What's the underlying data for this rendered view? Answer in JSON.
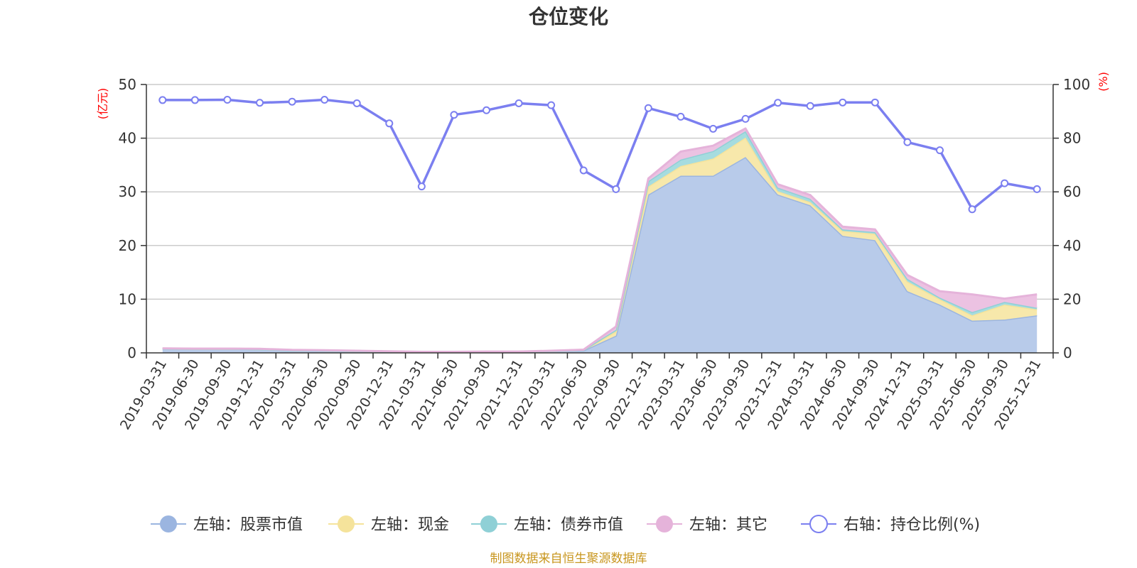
{
  "chart_data": {
    "type": "area",
    "title": "仓位变化",
    "left_axis": {
      "unit_label": "(亿元)",
      "ylim": [
        0,
        50
      ],
      "ticks": [
        "0",
        "10",
        "20",
        "30",
        "40",
        "50"
      ]
    },
    "right_axis": {
      "unit_label": "(%)",
      "ylim": [
        0,
        100
      ],
      "ticks": [
        "0",
        "20",
        "40",
        "60",
        "80",
        "100"
      ]
    },
    "categories": [
      "2019-03-31",
      "2019-06-30",
      "2019-09-30",
      "2019-12-31",
      "2020-03-31",
      "2020-06-30",
      "2020-09-30",
      "2020-12-31",
      "2021-03-31",
      "2021-06-30",
      "2021-09-30",
      "2021-12-31",
      "2022-03-31",
      "2022-06-30",
      "2022-09-30",
      "2022-12-31",
      "2023-03-31",
      "2023-06-30",
      "2023-09-30",
      "2023-12-31",
      "2024-03-31",
      "2024-06-30",
      "2024-09-30",
      "2024-12-31",
      "2025-03-31",
      "2025-06-30",
      "2025-09-30",
      "2025-12-31"
    ],
    "stacked": true,
    "grid": true,
    "legend_position": "bottom",
    "series": [
      {
        "name": "左轴：股票市值",
        "axis": "left",
        "color": "#9bb5e0",
        "fill": "#b8cbea",
        "values": [
          0.8,
          0.75,
          0.75,
          0.7,
          0.5,
          0.45,
          0.35,
          0.25,
          0.15,
          0.15,
          0.2,
          0.2,
          0.35,
          0.45,
          3.2,
          29.5,
          33.0,
          33.0,
          36.5,
          29.5,
          27.5,
          21.8,
          21.0,
          11.5,
          9.0,
          6.0,
          6.2,
          7.0
        ]
      },
      {
        "name": "左轴：现金",
        "axis": "left",
        "color": "#f5e39b",
        "fill": "#f7e8ab",
        "values": [
          0.0,
          0.0,
          0.0,
          0.0,
          0.0,
          0.0,
          0.0,
          0.0,
          0.0,
          0.0,
          0.0,
          0.0,
          0.0,
          0.1,
          0.8,
          1.5,
          1.8,
          3.2,
          3.6,
          0.6,
          0.6,
          0.9,
          1.2,
          1.8,
          1.0,
          1.0,
          2.8,
          1.1
        ]
      },
      {
        "name": "左轴：债券市值",
        "axis": "left",
        "color": "#8fd0d6",
        "fill": "#a6dcdf",
        "values": [
          0.0,
          0.0,
          0.0,
          0.0,
          0.0,
          0.0,
          0.0,
          0.0,
          0.0,
          0.0,
          0.0,
          0.0,
          0.0,
          0.0,
          0.3,
          1.0,
          1.2,
          1.4,
          1.2,
          0.7,
          0.6,
          0.3,
          0.3,
          0.5,
          0.3,
          0.6,
          0.5,
          0.3
        ]
      },
      {
        "name": "左轴：其它",
        "axis": "left",
        "color": "#e5b3da",
        "fill": "#ecc2e2",
        "values": [
          0.05,
          0.05,
          0.05,
          0.05,
          0.05,
          0.05,
          0.05,
          0.05,
          0.05,
          0.05,
          0.05,
          0.05,
          0.05,
          0.05,
          0.6,
          0.5,
          1.5,
          1.0,
          0.5,
          0.6,
          0.7,
          0.5,
          0.5,
          0.7,
          1.2,
          3.3,
          0.6,
          2.5
        ]
      },
      {
        "name": "右轴：持仓比例(%)",
        "axis": "right",
        "color": "#7b7ff0",
        "type": "line",
        "values": [
          94.2,
          94.2,
          94.3,
          93.2,
          93.6,
          94.3,
          93.0,
          85.5,
          62.0,
          88.7,
          90.4,
          93.0,
          92.3,
          68.0,
          61.0,
          91.2,
          88.0,
          83.5,
          87.2,
          93.2,
          92.0,
          93.3,
          93.3,
          78.5,
          75.5,
          53.5,
          63.2,
          61.0
        ]
      }
    ]
  },
  "footer": {
    "source": "制图数据来自恒生聚源数据库"
  }
}
